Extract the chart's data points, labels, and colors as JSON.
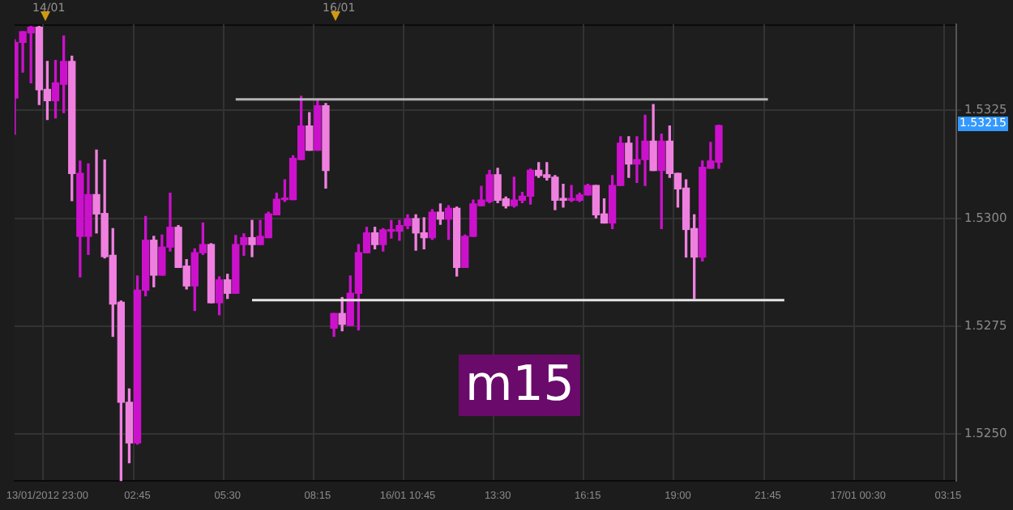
{
  "chart_data": {
    "type": "candlestick",
    "categories": [
      null,
      null,
      null,
      null,
      "13/01/2012 23:00",
      null,
      null,
      null,
      null,
      null,
      null,
      null,
      null,
      null,
      null,
      "02:45",
      null,
      null,
      null,
      null,
      null,
      null,
      null,
      null,
      null,
      null,
      "05:30",
      null,
      null,
      null,
      null,
      null,
      null,
      null,
      null,
      null,
      null,
      "08:15",
      null,
      null,
      null,
      null,
      null,
      null,
      null,
      null,
      null,
      null,
      "16/01 10:45",
      null,
      null,
      null,
      null,
      null,
      null,
      null,
      null,
      null,
      null,
      "13:30",
      null,
      null,
      null,
      null,
      null,
      null,
      null,
      null,
      null,
      null,
      "16:15",
      null,
      null,
      null,
      null,
      null,
      null,
      null,
      null,
      null,
      null,
      "19:00",
      null,
      null,
      null,
      null,
      null,
      null,
      null,
      null,
      null,
      null,
      "21:45",
      null,
      null,
      null,
      null,
      null,
      null,
      null,
      null,
      null,
      null,
      "17/01 00:30",
      null,
      null,
      null,
      null,
      null,
      null,
      null,
      null,
      null,
      null,
      "03:15",
      null
    ],
    "ohlc": [
      [
        1.53279,
        1.53414,
        1.53195,
        1.53408
      ],
      [
        1.53408,
        1.53433,
        1.53339,
        1.53433
      ],
      [
        1.5343,
        1.53445,
        1.53314,
        1.53443
      ],
      [
        1.53443,
        1.53445,
        1.53264,
        1.53298
      ],
      [
        1.53299,
        1.53364,
        1.53229,
        1.53273
      ],
      [
        1.53273,
        1.53366,
        1.53233,
        1.53314
      ],
      [
        1.53311,
        1.53423,
        1.53245,
        1.53364
      ],
      [
        1.53364,
        1.53376,
        1.53041,
        1.53104
      ],
      [
        1.52958,
        1.53133,
        1.52864,
        1.53104
      ],
      [
        1.52958,
        1.53126,
        1.52916,
        1.53055
      ],
      [
        1.53055,
        1.53158,
        1.52966,
        1.5301
      ],
      [
        1.53011,
        1.53135,
        1.52908,
        1.52911
      ],
      [
        1.52914,
        1.52976,
        1.52726,
        1.52801
      ],
      [
        1.52805,
        1.52808,
        1.52391,
        1.52573
      ],
      [
        1.52573,
        1.52604,
        1.52433,
        1.52479
      ],
      [
        1.52479,
        1.52866,
        1.52476,
        1.52833
      ],
      [
        1.52833,
        1.53004,
        1.5282,
        1.52949
      ],
      [
        1.52949,
        1.52958,
        1.52841,
        1.52868
      ],
      [
        1.52868,
        1.52961,
        1.52868,
        1.52933
      ],
      [
        1.52933,
        1.53058,
        1.52924,
        1.52979
      ],
      [
        1.52979,
        1.52983,
        1.52886,
        1.52886
      ],
      [
        1.52889,
        1.52904,
        1.52836,
        1.52843
      ],
      [
        1.52843,
        1.52929,
        1.52786,
        1.5292
      ],
      [
        1.5292,
        1.52989,
        1.52916,
        1.52939
      ],
      [
        1.52939,
        1.52941,
        1.52804,
        1.52804
      ],
      [
        1.52804,
        1.52864,
        1.52776,
        1.52857
      ],
      [
        1.52857,
        1.5287,
        1.52814,
        1.52826
      ],
      [
        1.52826,
        1.5296,
        1.52826,
        1.52939
      ],
      [
        1.52939,
        1.52964,
        1.52914,
        1.52955
      ],
      [
        1.52955,
        1.52995,
        1.52911,
        1.52939
      ],
      [
        1.52939,
        1.52995,
        1.52939,
        1.52958
      ],
      [
        1.52955,
        1.53014,
        1.52955,
        1.5301
      ],
      [
        1.53008,
        1.53058,
        1.53008,
        1.53044
      ],
      [
        1.53043,
        1.53089,
        1.53039,
        1.53044
      ],
      [
        1.53043,
        1.53145,
        1.53043,
        1.53139
      ],
      [
        1.53136,
        1.53283,
        1.53136,
        1.53214
      ],
      [
        1.53214,
        1.53245,
        1.53158,
        1.53158
      ],
      [
        1.53158,
        1.53273,
        1.53158,
        1.53261
      ],
      [
        1.53261,
        1.53266,
        1.5307,
        1.53111
      ],
      [
        1.52745,
        1.52779,
        1.52726,
        1.52779
      ],
      [
        1.52779,
        1.52816,
        1.52739,
        1.52754
      ],
      [
        1.52751,
        1.52866,
        1.52751,
        1.52826
      ],
      [
        1.52826,
        1.52939,
        1.52741,
        1.5292
      ],
      [
        1.5292,
        1.52979,
        1.5292,
        1.52966
      ],
      [
        1.52966,
        1.52979,
        1.52929,
        1.52939
      ],
      [
        1.52939,
        1.52976,
        1.52924,
        1.52973
      ],
      [
        1.5297,
        1.52995,
        1.52954,
        1.52971
      ],
      [
        1.5297,
        1.52995,
        1.52949,
        1.52983
      ],
      [
        1.52983,
        1.53008,
        1.52976,
        1.52999
      ],
      [
        1.52999,
        1.53008,
        1.52926,
        1.52966
      ],
      [
        1.52966,
        1.53001,
        1.52929,
        1.52955
      ],
      [
        1.52955,
        1.5302,
        1.52951,
        1.53014
      ],
      [
        1.53014,
        1.53033,
        1.52986,
        1.52998
      ],
      [
        1.52998,
        1.53029,
        1.52951,
        1.53023
      ],
      [
        1.53023,
        1.53026,
        1.52866,
        1.52886
      ],
      [
        1.52886,
        1.52961,
        1.52886,
        1.52958
      ],
      [
        1.52958,
        1.53042,
        1.52958,
        1.53033
      ],
      [
        1.53029,
        1.53074,
        1.53029,
        1.53042
      ],
      [
        1.53039,
        1.53111,
        1.53036,
        1.53101
      ],
      [
        1.53101,
        1.53116,
        1.53036,
        1.53042
      ],
      [
        1.53045,
        1.53049,
        1.53024,
        1.53029
      ],
      [
        1.53029,
        1.53095,
        1.53026,
        1.53042
      ],
      [
        1.53042,
        1.5306,
        1.53036,
        1.53051
      ],
      [
        1.53051,
        1.53114,
        1.53033,
        1.53111
      ],
      [
        1.53111,
        1.53129,
        1.53095,
        1.53099
      ],
      [
        1.53101,
        1.53129,
        1.53089,
        1.53095
      ],
      [
        1.53095,
        1.53099,
        1.5302,
        1.53042
      ],
      [
        1.53043,
        1.53079,
        1.53026,
        1.53042
      ],
      [
        1.53042,
        1.53076,
        1.53039,
        1.53043
      ],
      [
        1.53042,
        1.53058,
        1.53039,
        1.53054
      ],
      [
        1.53054,
        1.53079,
        1.53054,
        1.53076
      ],
      [
        1.53076,
        1.53076,
        1.53001,
        1.53008
      ],
      [
        1.5301,
        1.53045,
        1.52989,
        1.52989
      ],
      [
        1.52989,
        1.53099,
        1.52976,
        1.53076
      ],
      [
        1.53076,
        1.53189,
        1.53076,
        1.53174
      ],
      [
        1.53174,
        1.53189,
        1.53095,
        1.53126
      ],
      [
        1.53126,
        1.53189,
        1.53083,
        1.53136
      ],
      [
        1.53136,
        1.53239,
        1.53076,
        1.53179
      ],
      [
        1.53179,
        1.53264,
        1.53111,
        1.53111
      ],
      [
        1.53111,
        1.53195,
        1.52976,
        1.53179
      ],
      [
        1.53179,
        1.53214,
        1.53095,
        1.53104
      ],
      [
        1.53104,
        1.53104,
        1.53026,
        1.53068
      ],
      [
        1.5307,
        1.53089,
        1.5291,
        1.52974
      ],
      [
        1.52976,
        1.53008,
        1.52814,
        1.5291
      ],
      [
        1.5291,
        1.53133,
        1.52901,
        1.53118
      ],
      [
        1.53116,
        1.53176,
        1.53116,
        1.53133
      ],
      [
        1.5313,
        1.53216,
        1.53116,
        1.53215
      ],
      null,
      null,
      null,
      null,
      null,
      null,
      null,
      null,
      null,
      null,
      null,
      null,
      null,
      null,
      null,
      null,
      null,
      null,
      null,
      null,
      null,
      null,
      null,
      null,
      null,
      null,
      null,
      null,
      null
    ],
    "colors": [
      "#cc11cc",
      "#cc11cc",
      "#cc11cc",
      "#f080e0",
      "#f080e0",
      "#cc11cc",
      "#cc11cc",
      "#f080e0",
      "#cc11cc",
      "#cc11cc",
      "#f080e0",
      "#f080e0",
      "#f080e0",
      "#f080e0",
      "#f080e0",
      "#cc11cc",
      "#cc11cc",
      "#f080e0",
      "#cc11cc",
      "#cc11cc",
      "#f080e0",
      "#f080e0",
      "#cc11cc",
      "#cc11cc",
      "#f080e0",
      "#cc11cc",
      "#f080e0",
      "#cc11cc",
      "#cc11cc",
      "#f080e0",
      "#cc11cc",
      "#cc11cc",
      "#cc11cc",
      "#cc11cc",
      "#cc11cc",
      "#cc11cc",
      "#f080e0",
      "#cc11cc",
      "#f080e0",
      "#cc11cc",
      "#f080e0",
      "#cc11cc",
      "#cc11cc",
      "#cc11cc",
      "#f080e0",
      "#cc11cc",
      "#cc11cc",
      "#cc11cc",
      "#cc11cc",
      "#f080e0",
      "#f080e0",
      "#cc11cc",
      "#f080e0",
      "#cc11cc",
      "#f080e0",
      "#cc11cc",
      "#cc11cc",
      "#cc11cc",
      "#cc11cc",
      "#f080e0",
      "#f080e0",
      "#cc11cc",
      "#cc11cc",
      "#cc11cc",
      "#f080e0",
      "#f080e0",
      "#f080e0",
      "#f080e0",
      "#cc11cc",
      "#cc11cc",
      "#cc11cc",
      "#f080e0",
      "#f080e0",
      "#cc11cc",
      "#cc11cc",
      "#f080e0",
      "#cc11cc",
      "#cc11cc",
      "#f080e0",
      "#cc11cc",
      "#f080e0",
      "#f080e0",
      "#f080e0",
      "#f080e0",
      "#cc11cc",
      "#cc11cc",
      "#cc11cc",
      null,
      null,
      null,
      null,
      null,
      null,
      null,
      null,
      null,
      null,
      null,
      null,
      null,
      null,
      null,
      null,
      null,
      null,
      null,
      null,
      null,
      null,
      null,
      null,
      null,
      null,
      null,
      null,
      null
    ],
    "series": [
      {
        "type": "line",
        "color": "#b4b4b4",
        "values": [
          null,
          null,
          null,
          null,
          null,
          null,
          null,
          null,
          null,
          null,
          null,
          null,
          null,
          null,
          null,
          null,
          null,
          null,
          null,
          null,
          null,
          null,
          null,
          null,
          null,
          null,
          null,
          1.53276,
          null,
          null,
          null,
          null,
          null,
          null,
          null,
          null,
          null,
          null,
          null,
          null,
          null,
          null,
          null,
          null,
          null,
          null,
          null,
          null,
          null,
          null,
          null,
          null,
          null,
          null,
          null,
          null,
          null,
          null,
          null,
          null,
          null,
          null,
          null,
          null,
          null,
          null,
          null,
          null,
          null,
          null,
          null,
          null,
          null,
          null,
          null,
          null,
          null,
          null,
          null,
          null,
          null,
          null,
          null,
          null,
          null,
          null,
          null,
          null,
          null,
          null,
          null,
          null,
          1.53276,
          null,
          null,
          null,
          null,
          null,
          null,
          null,
          null,
          null,
          null,
          null,
          null,
          null,
          null,
          null,
          null,
          null,
          null,
          null,
          null,
          null,
          null,
          null
        ]
      },
      {
        "type": "line",
        "color": "#e6e6e6",
        "values": [
          null,
          null,
          null,
          null,
          null,
          null,
          null,
          null,
          null,
          null,
          null,
          null,
          null,
          null,
          null,
          null,
          null,
          null,
          null,
          null,
          null,
          null,
          null,
          null,
          null,
          null,
          null,
          null,
          null,
          1.5281,
          null,
          null,
          null,
          null,
          null,
          null,
          null,
          null,
          null,
          null,
          null,
          null,
          null,
          null,
          null,
          null,
          null,
          null,
          null,
          null,
          null,
          null,
          null,
          null,
          null,
          null,
          null,
          null,
          null,
          null,
          null,
          null,
          null,
          null,
          null,
          null,
          null,
          null,
          null,
          null,
          null,
          null,
          null,
          null,
          null,
          null,
          null,
          null,
          null,
          null,
          null,
          null,
          null,
          null,
          null,
          null,
          null,
          null,
          null,
          null,
          null,
          null,
          null,
          null,
          1.5281,
          null,
          null,
          null,
          null,
          null,
          null,
          null,
          null,
          null,
          null,
          null,
          null,
          null,
          null,
          null,
          null,
          null,
          null,
          null,
          null,
          null
        ]
      }
    ],
    "ylim": [
      1.5239,
      1.5345
    ],
    "yticks": [
      {
        "value": 1.525,
        "label": "1.5250"
      },
      {
        "value": 1.5275,
        "label": "1.5275"
      },
      {
        "value": 1.53,
        "label": "1.5300"
      },
      {
        "value": 1.5325,
        "label": "1.5325"
      }
    ],
    "grid": true,
    "annotations": [
      "14/01",
      "16/01",
      "m15",
      "1.53215"
    ]
  }
}
